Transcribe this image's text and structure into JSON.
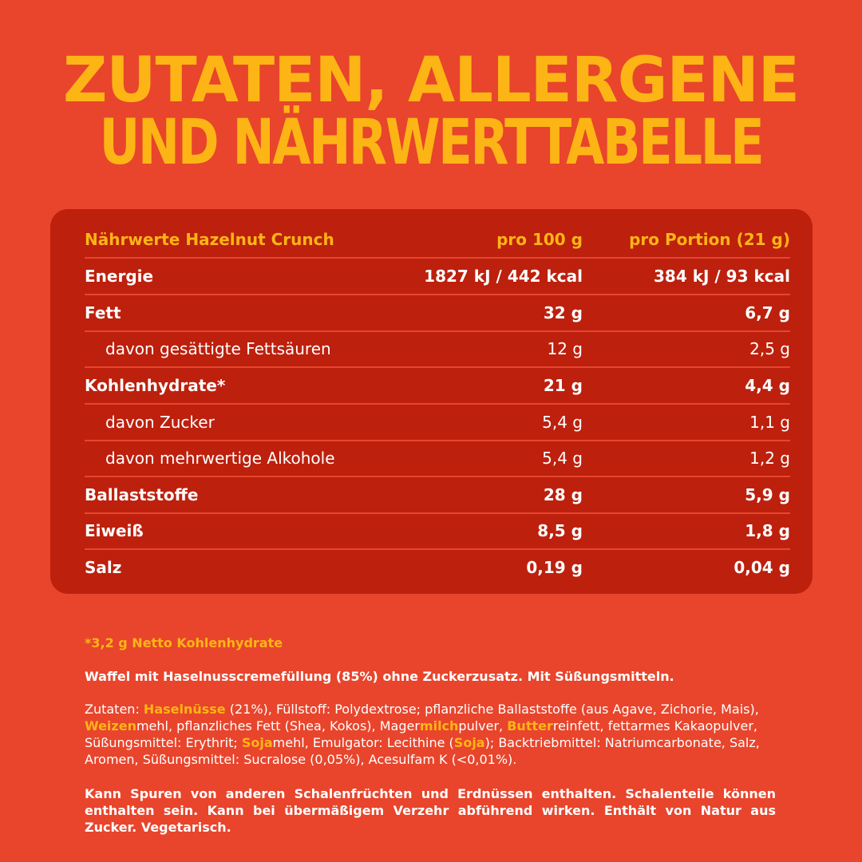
{
  "headline": {
    "line1": "ZUTATEN, ALLERGENE",
    "line2": "UND NÄHRWERTTABELLE"
  },
  "nutrition_table": {
    "header": {
      "name": "Nährwerte Hazelnut Crunch",
      "per100": "pro 100 g",
      "perPortion": "pro Portion (21 g)"
    },
    "rows": [
      {
        "label": "Energie",
        "per100": "1827 kJ / 442 kcal",
        "perPortion": "384 kJ / 93 kcal"
      },
      {
        "label": "Fett",
        "per100": "32 g",
        "perPortion": "6,7 g"
      },
      {
        "label": "davon gesättigte Fettsäuren",
        "per100": "12 g",
        "perPortion": "2,5 g"
      },
      {
        "label": "Kohlenhydrate*",
        "per100": "21 g",
        "perPortion": "4,4 g"
      },
      {
        "label": "davon Zucker",
        "per100": "5,4 g",
        "perPortion": "1,1 g"
      },
      {
        "label": "davon mehrwertige Alkohole",
        "per100": "5,4 g",
        "perPortion": "1,2 g"
      },
      {
        "label": "Ballaststoffe",
        "per100": "28 g",
        "perPortion": "5,9 g"
      },
      {
        "label": "Eiweiß",
        "per100": "8,5 g",
        "perPortion": "1,8 g"
      },
      {
        "label": "Salz",
        "per100": "0,19 g",
        "perPortion": "0,04 g"
      }
    ]
  },
  "footnote": "*3,2 g Netto Kohlenhydrate",
  "description": "Waffel mit Haselnusscremefüllung (85%) ohne Zuckerzusatz. Mit Süßungsmitteln.",
  "ingredients": {
    "p1": "Zutaten: ",
    "a1": "Haselnüsse",
    "p2": " (21%), Füllstoff: Polydextrose; pflanzliche Ballaststoffe (aus Agave, Zichorie, Mais), ",
    "a2": "Weizen",
    "p3": "mehl, pflanzliches Fett (Shea, Kokos), Mager",
    "a3": "milch",
    "p4": "pulver, ",
    "a4": "Butter",
    "p5": "reinfett, fettarmes Kakaopulver, Süßungsmittel: Erythrit; ",
    "a5": "Soja",
    "p6": "mehl, Emulgator: Lecithine (",
    "a6": "Soja",
    "p7": "); Backtriebmittel: Natriumcarbonate, Salz, Aromen, Süßungsmittel: Sucralose (0,05%), Acesulfam K (<0,01%)."
  },
  "warning": "Kann Spuren von anderen Schalenfrüchten und Erdnüssen enthalten. Schalenteile können enthalten sein. Kann bei übermäßigem Verzehr abführend wirken. Enthält von Natur aus Zucker. Vegetarisch."
}
